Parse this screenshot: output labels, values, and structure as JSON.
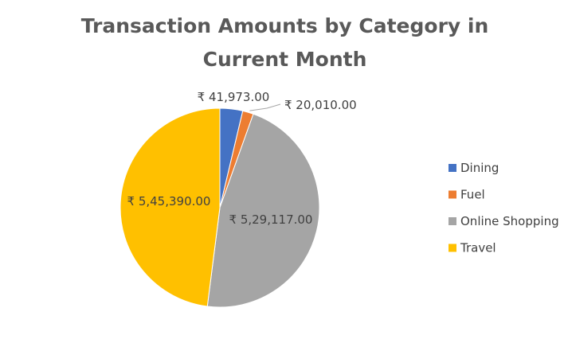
{
  "chart_data": {
    "type": "pie",
    "title": "Transaction Amounts by Category in Current Month",
    "categories": [
      "Dining",
      "Fuel",
      "Online Shopping",
      "Travel"
    ],
    "values": [
      41973,
      20010,
      529117,
      545390
    ],
    "value_labels": [
      "₹ 41,973.00",
      "₹ 20,010.00",
      "₹ 5,29,117.00",
      "₹ 5,45,390.00"
    ],
    "colors": [
      "#4472C4",
      "#ED7D31",
      "#A5A5A5",
      "#FFC000"
    ],
    "legend_position": "right",
    "start_angle_deg": 0,
    "direction": "clockwise"
  }
}
